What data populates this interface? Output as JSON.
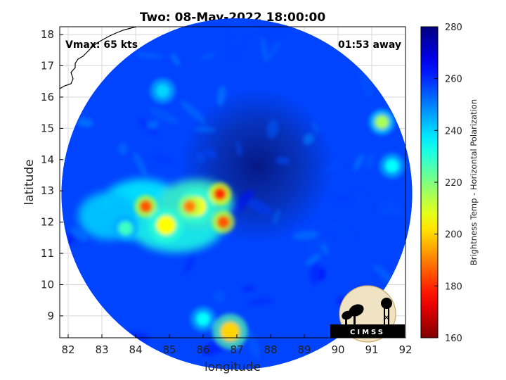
{
  "chart_data": {
    "type": "heatmap",
    "title": "Two: 08-May-2022 18:00:00",
    "xlabel": "longitude",
    "ylabel": "latitude",
    "xlim": [
      81.75,
      92
    ],
    "ylim": [
      8.3,
      18.25
    ],
    "x_ticks": [
      82,
      83,
      84,
      85,
      86,
      87,
      88,
      89,
      90,
      91,
      92
    ],
    "y_ticks": [
      9,
      10,
      11,
      12,
      13,
      14,
      15,
      16,
      17,
      18
    ],
    "grid": true,
    "annotation_left": "Vmax: 65 kts",
    "annotation_right": "01:53 away",
    "colorbar": {
      "label": "Brightness Temp - Horizontal Polarization",
      "range": [
        160,
        280
      ],
      "ticks": [
        160,
        180,
        200,
        220,
        240,
        260,
        280
      ]
    },
    "swath": {
      "center_lon": 87.0,
      "center_lat": 12.9,
      "radius_deg": 5.2
    },
    "storm_center": {
      "lon": 87.6,
      "lat": 13.8,
      "value": 268
    },
    "ambient_value": 257,
    "features": [
      {
        "lon": 85.8,
        "lat": 12.5,
        "value": 205
      },
      {
        "lon": 86.5,
        "lat": 12.9,
        "value": 180
      },
      {
        "lon": 86.6,
        "lat": 12.0,
        "value": 185
      },
      {
        "lon": 84.3,
        "lat": 12.5,
        "value": 185
      },
      {
        "lon": 85.6,
        "lat": 12.5,
        "value": 190
      },
      {
        "lon": 84.9,
        "lat": 11.9,
        "value": 205
      },
      {
        "lon": 83.7,
        "lat": 11.8,
        "value": 228
      },
      {
        "lon": 86.8,
        "lat": 8.5,
        "value": 200
      },
      {
        "lon": 91.3,
        "lat": 15.2,
        "value": 215
      },
      {
        "lon": 91.6,
        "lat": 13.8,
        "value": 235
      },
      {
        "lon": 84.8,
        "lat": 16.2,
        "value": 240
      },
      {
        "lon": 86.0,
        "lat": 8.9,
        "value": 235
      }
    ],
    "logo_text": "CIMSS"
  }
}
